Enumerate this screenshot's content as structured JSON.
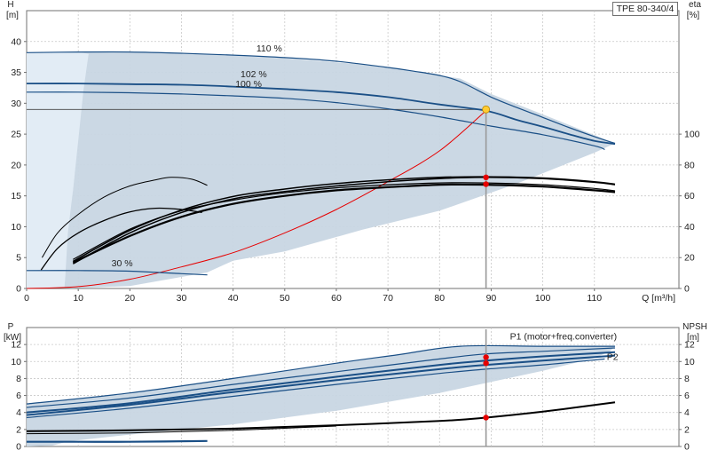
{
  "badge": "TPE 80-340/4",
  "colors": {
    "fill": "#c8d6e3",
    "fill_light": "#e2ecf5",
    "curve_dark": "#1a4f86",
    "curve_mid": "#2d5f94",
    "black": "#000000",
    "red": "#e60000",
    "grey": "#999999",
    "grid": "#c8c8c8",
    "axis": "#707070",
    "duty_point": "#ffcc33"
  },
  "chart_data": [
    {
      "id": "top",
      "type": "line",
      "xlabel": "Q [m³/h]",
      "xlim": [
        0,
        120
      ],
      "x_ticks": [
        0,
        10,
        20,
        30,
        40,
        50,
        60,
        70,
        80,
        90,
        100,
        110
      ],
      "left_axis": {
        "title": "H",
        "unit": "[m]",
        "ylim": [
          0,
          45
        ],
        "ticks": [
          0,
          5,
          10,
          15,
          20,
          25,
          30,
          35,
          40
        ]
      },
      "right_axis": {
        "title": "eta",
        "unit": "[%]",
        "ylim": [
          0,
          180
        ],
        "ticks": [
          0,
          20,
          40,
          60,
          80,
          100
        ]
      },
      "grid": true,
      "labels": [
        {
          "text": "110 %",
          "x": 47,
          "y": 38.4
        },
        {
          "text": "102 %",
          "x": 44,
          "y": 34.2
        },
        {
          "text": "100 %",
          "x": 43,
          "y": 32.6
        },
        {
          "text": "30 %",
          "x": 18.5,
          "y": 3.6
        }
      ],
      "area": [
        [
          0,
          38.2
        ],
        [
          10,
          38.3
        ],
        [
          30,
          38.1
        ],
        [
          50,
          37.3
        ],
        [
          65,
          36.3
        ],
        [
          75,
          35.2
        ],
        [
          84,
          34.0
        ],
        [
          90,
          31.5
        ],
        [
          100,
          28.2
        ],
        [
          114,
          23.5
        ],
        [
          110,
          22.0
        ],
        [
          95,
          17.0
        ],
        [
          80,
          12.6
        ],
        [
          65,
          9.5
        ],
        [
          50,
          6.0
        ],
        [
          40,
          4.5
        ],
        [
          35,
          2.6
        ],
        [
          20,
          0.4
        ],
        [
          9,
          0.05
        ],
        [
          7.3,
          0.1
        ],
        [
          7.5,
          2.0
        ],
        [
          8,
          9.0
        ],
        [
          9,
          16.0
        ],
        [
          10,
          24.0
        ],
        [
          11,
          32.0
        ],
        [
          12,
          38.0
        ],
        [
          10,
          38.3
        ]
      ],
      "area_light": [
        [
          0,
          38.2
        ],
        [
          10,
          38.3
        ],
        [
          12,
          38.0
        ],
        [
          9,
          16.0
        ],
        [
          7.3,
          0.1
        ],
        [
          0,
          0
        ]
      ],
      "head_curves": [
        {
          "name": "110 %",
          "width": 1.2,
          "points": [
            [
              0,
              38.2
            ],
            [
              10,
              38.3
            ],
            [
              20,
              38.3
            ],
            [
              30,
              38.1
            ],
            [
              40,
              37.8
            ],
            [
              50,
              37.4
            ],
            [
              60,
              36.8
            ],
            [
              70,
              35.8
            ],
            [
              75,
              35.2
            ],
            [
              80,
              34.5
            ],
            [
              84,
              33.5
            ],
            [
              90,
              31.0
            ],
            [
              95,
              29.3
            ],
            [
              100,
              27.7
            ],
            [
              105,
              26.1
            ],
            [
              110,
              24.6
            ],
            [
              114,
              23.5
            ]
          ]
        },
        {
          "name": "102 %",
          "width": 1.8,
          "points": [
            [
              0,
              33.2
            ],
            [
              10,
              33.2
            ],
            [
              20,
              33.1
            ],
            [
              30,
              33.0
            ],
            [
              40,
              32.7
            ],
            [
              50,
              32.3
            ],
            [
              60,
              31.8
            ],
            [
              70,
              31.0
            ],
            [
              80,
              29.8
            ],
            [
              89,
              28.8
            ],
            [
              95,
              27.3
            ],
            [
              100,
              26.2
            ],
            [
              105,
              25.0
            ],
            [
              110,
              23.9
            ],
            [
              114,
              23.4
            ]
          ]
        },
        {
          "name": "100 %",
          "width": 1.2,
          "points": [
            [
              0,
              31.8
            ],
            [
              10,
              31.8
            ],
            [
              20,
              31.7
            ],
            [
              30,
              31.5
            ],
            [
              40,
              31.2
            ],
            [
              50,
              30.8
            ],
            [
              60,
              30.1
            ],
            [
              70,
              29.1
            ],
            [
              80,
              27.8
            ],
            [
              90,
              26.3
            ],
            [
              100,
              24.9
            ],
            [
              110,
              23.1
            ],
            [
              112,
              22.5
            ]
          ]
        },
        {
          "name": "30 %",
          "width": 1.2,
          "points": [
            [
              0,
              2.9
            ],
            [
              10,
              2.9
            ],
            [
              20,
              2.8
            ],
            [
              30,
              2.4
            ],
            [
              35,
              2.2
            ]
          ]
        }
      ],
      "system_line": {
        "color": "grey",
        "points": [
          [
            0,
            29.0
          ],
          [
            89,
            29.0
          ]
        ]
      },
      "system_curve": {
        "color": "red",
        "points": [
          [
            0,
            0
          ],
          [
            10,
            0.3
          ],
          [
            20,
            1.5
          ],
          [
            30,
            3.5
          ],
          [
            40,
            5.8
          ],
          [
            50,
            9.0
          ],
          [
            60,
            12.8
          ],
          [
            70,
            17.3
          ],
          [
            80,
            22.3
          ],
          [
            89,
            28.8
          ]
        ]
      },
      "eta_curves": [
        {
          "width": 1.0,
          "color": "black",
          "points": [
            [
              3,
              5.0
            ],
            [
              6,
              9.0
            ],
            [
              10,
              12.0
            ],
            [
              15,
              14.8
            ],
            [
              20,
              16.6
            ],
            [
              25,
              17.6
            ],
            [
              28,
              18.0
            ],
            [
              32,
              17.7
            ],
            [
              35,
              16.7
            ]
          ]
        },
        {
          "width": 1.3,
          "color": "black",
          "points": [
            [
              2.8,
              3.0
            ],
            [
              6,
              6.5
            ],
            [
              10,
              9.0
            ],
            [
              15,
              11.0
            ],
            [
              20,
              12.4
            ],
            [
              25,
              13.0
            ],
            [
              30,
              12.8
            ],
            [
              34,
              12.3
            ]
          ]
        },
        {
          "width": 1.5,
          "color": "black",
          "points": [
            [
              9,
              4.0
            ],
            [
              20,
              9.0
            ],
            [
              30,
              12.3
            ],
            [
              40,
              14.5
            ],
            [
              50,
              15.7
            ],
            [
              60,
              16.6
            ],
            [
              70,
              17.3
            ],
            [
              80,
              17.8
            ],
            [
              89,
              18.0
            ],
            [
              100,
              17.8
            ],
            [
              110,
              17.2
            ],
            [
              114,
              16.8
            ]
          ]
        },
        {
          "width": 1.5,
          "color": "black",
          "points": [
            [
              9,
              4.4
            ],
            [
              20,
              9.4
            ],
            [
              30,
              12.7
            ],
            [
              40,
              14.9
            ],
            [
              50,
              16.1
            ],
            [
              60,
              17.0
            ],
            [
              70,
              17.6
            ],
            [
              80,
              18.0
            ],
            [
              89,
              18.1
            ],
            [
              100,
              17.9
            ],
            [
              110,
              17.3
            ],
            [
              114,
              16.9
            ]
          ]
        },
        {
          "width": 2.2,
          "color": "black",
          "points": [
            [
              9,
              4.2
            ],
            [
              20,
              8.5
            ],
            [
              30,
              11.6
            ],
            [
              40,
              13.7
            ],
            [
              50,
              15.0
            ],
            [
              60,
              15.9
            ],
            [
              70,
              16.4
            ],
            [
              80,
              16.8
            ],
            [
              89,
              16.8
            ],
            [
              100,
              16.5
            ],
            [
              110,
              15.9
            ],
            [
              114,
              15.6
            ]
          ]
        },
        {
          "width": 1.2,
          "color": "black",
          "points": [
            [
              9,
              4.7
            ],
            [
              20,
              9.6
            ],
            [
              30,
              12.6
            ],
            [
              40,
              14.3
            ],
            [
              50,
              15.5
            ],
            [
              60,
              16.3
            ],
            [
              70,
              16.8
            ],
            [
              80,
              17.1
            ],
            [
              89,
              17.1
            ],
            [
              100,
              16.8
            ],
            [
              110,
              16.2
            ],
            [
              114,
              15.8
            ]
          ]
        }
      ],
      "duty_vertical_x": 89,
      "markers": [
        {
          "x": 89,
          "y": 29.0,
          "color": "duty_point",
          "r": 4
        },
        {
          "x": 89,
          "y": 18.0,
          "color": "red",
          "r": 3.2
        },
        {
          "x": 89,
          "y": 16.9,
          "color": "red",
          "r": 3.2
        }
      ]
    },
    {
      "id": "bottom",
      "type": "line",
      "xlim": [
        0,
        120
      ],
      "x_ticks": [
        0,
        10,
        20,
        30,
        40,
        50,
        60,
        70,
        80,
        90,
        100,
        110
      ],
      "left_axis": {
        "title": "P",
        "unit": "[kW]",
        "ylim": [
          0,
          14
        ],
        "ticks": [
          0,
          2,
          4,
          6,
          8,
          10,
          12
        ]
      },
      "right_axis": {
        "title": "NPSH",
        "unit": "[m]",
        "ylim": [
          0,
          14
        ],
        "ticks": [
          0,
          2,
          4,
          6,
          8,
          10,
          12
        ]
      },
      "grid": true,
      "labels": [
        {
          "text": "P1 (motor+freq.converter)",
          "x": 104,
          "y": 12.6,
          "anchor": "middle",
          "color": "curve_dark"
        },
        {
          "text": "P2",
          "x": 113.5,
          "y": 10.2,
          "anchor": "middle",
          "color": "curve_dark"
        }
      ],
      "area": [
        [
          0,
          5.0
        ],
        [
          20,
          6.3
        ],
        [
          40,
          8.0
        ],
        [
          60,
          9.8
        ],
        [
          72,
          10.8
        ],
        [
          84,
          11.8
        ],
        [
          100,
          11.8
        ],
        [
          114,
          11.8
        ],
        [
          113,
          11.2
        ],
        [
          110,
          10.4
        ],
        [
          100,
          8.9
        ],
        [
          80,
          6.3
        ],
        [
          60,
          4.2
        ],
        [
          40,
          2.6
        ],
        [
          20,
          1.4
        ],
        [
          8,
          0.6
        ],
        [
          5,
          0.1
        ],
        [
          0,
          0
        ]
      ],
      "power_curves": [
        {
          "width": 1.2,
          "points": [
            [
              0,
              5.0
            ],
            [
              20,
              6.3
            ],
            [
              40,
              8.0
            ],
            [
              60,
              9.8
            ],
            [
              72,
              10.8
            ],
            [
              84,
              11.8
            ],
            [
              100,
              11.8
            ],
            [
              114,
              11.8
            ]
          ]
        },
        {
          "width": 1.2,
          "points": [
            [
              0,
              4.6
            ],
            [
              20,
              5.7
            ],
            [
              40,
              7.3
            ],
            [
              60,
              8.8
            ],
            [
              80,
              10.3
            ],
            [
              89,
              10.9
            ],
            [
              100,
              11.2
            ],
            [
              114,
              11.6
            ]
          ]
        },
        {
          "width": 2.0,
          "points": [
            [
              0,
              4.0
            ],
            [
              20,
              5.1
            ],
            [
              40,
              6.7
            ],
            [
              60,
              8.2
            ],
            [
              80,
              9.6
            ],
            [
              89,
              10.1
            ],
            [
              100,
              10.6
            ],
            [
              114,
              11.1
            ]
          ]
        },
        {
          "width": 2.0,
          "points": [
            [
              0,
              3.7
            ],
            [
              20,
              4.9
            ],
            [
              40,
              6.4
            ],
            [
              60,
              7.8
            ],
            [
              80,
              9.1
            ],
            [
              89,
              9.6
            ],
            [
              100,
              10.1
            ],
            [
              114,
              10.7
            ]
          ]
        },
        {
          "width": 1.2,
          "points": [
            [
              0,
              3.4
            ],
            [
              20,
              4.5
            ],
            [
              40,
              5.9
            ],
            [
              60,
              7.3
            ],
            [
              80,
              8.6
            ],
            [
              89,
              9.1
            ],
            [
              100,
              9.6
            ],
            [
              112,
              10.3
            ]
          ]
        },
        {
          "width": 2.2,
          "points": [
            [
              0,
              0.55
            ],
            [
              10,
              0.55
            ],
            [
              20,
              0.55
            ],
            [
              35,
              0.65
            ]
          ]
        }
      ],
      "npsh_curves": [
        {
          "width": 2.0,
          "points": [
            [
              0,
              1.8
            ],
            [
              20,
              1.9
            ],
            [
              40,
              2.1
            ],
            [
              60,
              2.5
            ],
            [
              80,
              3.0
            ],
            [
              89,
              3.4
            ],
            [
              100,
              4.1
            ],
            [
              114,
              5.2
            ]
          ]
        },
        {
          "width": 1.0,
          "points": [
            [
              0,
              1.5
            ],
            [
              20,
              1.6
            ],
            [
              40,
              1.9
            ],
            [
              60,
              2.4
            ]
          ]
        }
      ],
      "duty_vertical_x": 89,
      "markers": [
        {
          "x": 89,
          "y": 10.5,
          "color": "red",
          "r": 3.2
        },
        {
          "x": 89,
          "y": 9.8,
          "color": "red",
          "r": 3.2
        },
        {
          "x": 89,
          "y": 3.4,
          "color": "red",
          "r": 3.2
        }
      ]
    }
  ]
}
